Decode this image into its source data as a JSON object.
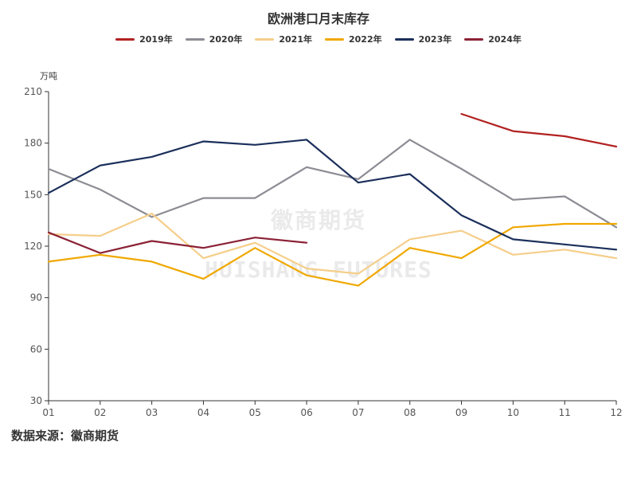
{
  "chart_data": {
    "type": "line",
    "title": "欧洲港口月末库存",
    "ylabel": "万吨",
    "xlabel": "",
    "categories": [
      "01",
      "02",
      "03",
      "04",
      "05",
      "06",
      "07",
      "08",
      "09",
      "10",
      "11",
      "12"
    ],
    "ylim": [
      30,
      210
    ],
    "yticks": [
      30,
      60,
      90,
      120,
      150,
      180,
      210
    ],
    "grid": false,
    "legend_position": "top-center",
    "series": [
      {
        "name": "2019年",
        "color": "#B22222",
        "values": [
          null,
          null,
          null,
          null,
          null,
          null,
          null,
          null,
          197,
          187,
          184,
          178
        ]
      },
      {
        "name": "2020年",
        "color": "#8C8C94",
        "values": [
          165,
          153,
          137,
          148,
          148,
          166,
          159,
          182,
          165,
          147,
          149,
          131
        ]
      },
      {
        "name": "2021年",
        "color": "#F5CE8A",
        "values": [
          127,
          126,
          139,
          113,
          122,
          107,
          104,
          124,
          129,
          115,
          118,
          113
        ]
      },
      {
        "name": "2022年",
        "color": "#F0A800",
        "values": [
          111,
          115,
          111,
          101,
          119,
          103,
          97,
          119,
          113,
          131,
          133,
          133
        ]
      },
      {
        "name": "2023年",
        "color": "#1B2F5B",
        "values": [
          151,
          167,
          172,
          181,
          179,
          182,
          157,
          162,
          138,
          124,
          121,
          118
        ]
      },
      {
        "name": "2024年",
        "color": "#8B2236",
        "values": [
          128,
          116,
          123,
          119,
          125,
          122,
          null,
          null,
          null,
          null,
          null,
          null
        ]
      }
    ]
  },
  "source": "数据来源：徽商期货",
  "watermark": {
    "cn": "徽商期货",
    "en": "HUISHANG FUTURES"
  }
}
